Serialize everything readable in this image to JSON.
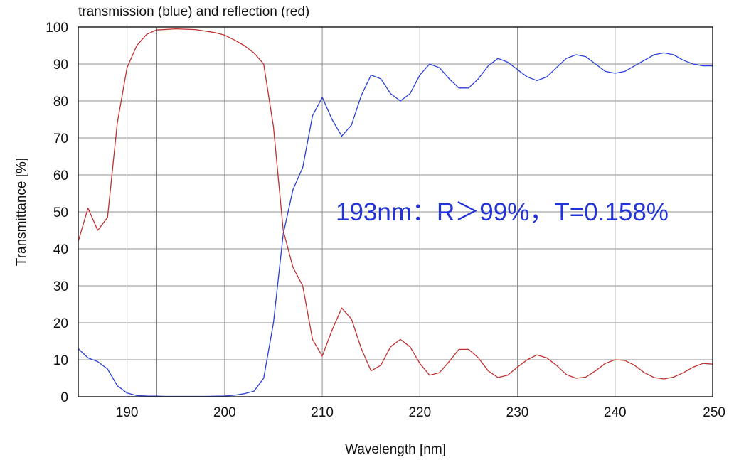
{
  "chart_data": {
    "type": "line",
    "title": "transmission (blue) and reflection (red)",
    "xlabel": "Wavelength [nm]",
    "ylabel": "Transmittance [%]",
    "xlim": [
      185,
      250
    ],
    "ylim": [
      0,
      100
    ],
    "xticks": [
      190,
      200,
      210,
      220,
      230,
      240,
      250
    ],
    "yticks": [
      0,
      10,
      20,
      30,
      40,
      50,
      60,
      70,
      80,
      90,
      100
    ],
    "grid": true,
    "marker_line_x": 193,
    "annotation": "193nm：R＞99%，T=0.158%",
    "colors": {
      "transmission": "#2a3fd9",
      "reflection": "#c23030",
      "grid": "#8f8f8f",
      "annotation": "#2433d6"
    },
    "series": [
      {
        "key": "transmission",
        "x": [
          185,
          186,
          187,
          188,
          189,
          190,
          191,
          192,
          193,
          194,
          196,
          198,
          200,
          201,
          202,
          203,
          204,
          205,
          206,
          207,
          208,
          209,
          210,
          211,
          212,
          213,
          214,
          215,
          216,
          217,
          218,
          219,
          220,
          221,
          222,
          223,
          224,
          225,
          226,
          227,
          228,
          229,
          230,
          231,
          232,
          233,
          234,
          235,
          236,
          237,
          238,
          239,
          240,
          241,
          242,
          243,
          244,
          245,
          246,
          247,
          248,
          249,
          250
        ],
        "y": [
          13,
          10.5,
          9.5,
          7.5,
          3,
          1,
          0.3,
          0.2,
          0.158,
          0.1,
          0.1,
          0.1,
          0.2,
          0.4,
          0.8,
          1.5,
          5,
          20,
          44,
          56,
          62,
          76,
          81,
          75,
          70.5,
          73.5,
          81.5,
          87,
          86,
          82,
          80,
          82,
          87,
          90,
          89,
          86,
          83.5,
          83.5,
          86,
          89.5,
          91.5,
          90.5,
          88.5,
          86.5,
          85.5,
          86.5,
          89,
          91.5,
          92.5,
          92,
          90,
          88,
          87.5,
          88,
          89.5,
          91,
          92.5,
          93,
          92.5,
          91,
          90,
          89.5,
          89.5
        ]
      },
      {
        "key": "reflection",
        "x": [
          185,
          186,
          187,
          188,
          189,
          190,
          191,
          192,
          193,
          195,
          197,
          199,
          200,
          201,
          202,
          203,
          204,
          205,
          206,
          207,
          208,
          209,
          210,
          211,
          212,
          213,
          214,
          215,
          216,
          217,
          218,
          219,
          220,
          221,
          222,
          223,
          224,
          225,
          226,
          227,
          228,
          229,
          230,
          231,
          232,
          233,
          234,
          235,
          236,
          237,
          238,
          239,
          240,
          241,
          242,
          243,
          244,
          245,
          246,
          247,
          248,
          249,
          250
        ],
        "y": [
          42,
          51,
          45,
          48.5,
          74,
          89,
          95,
          98,
          99.2,
          99.5,
          99.3,
          98.5,
          97.8,
          96.5,
          95,
          93,
          90,
          73,
          45,
          35,
          30,
          15.5,
          11,
          18,
          24,
          21,
          13,
          7,
          8.5,
          13.5,
          15.5,
          13.5,
          9,
          5.8,
          6.5,
          9.5,
          12.8,
          12.8,
          10.5,
          7,
          5.2,
          5.8,
          8,
          10,
          11.3,
          10.5,
          8.5,
          6,
          5,
          5.3,
          7,
          9,
          10,
          9.8,
          8.5,
          6.5,
          5.2,
          4.8,
          5.3,
          6.5,
          8,
          9,
          8.8
        ]
      }
    ]
  }
}
